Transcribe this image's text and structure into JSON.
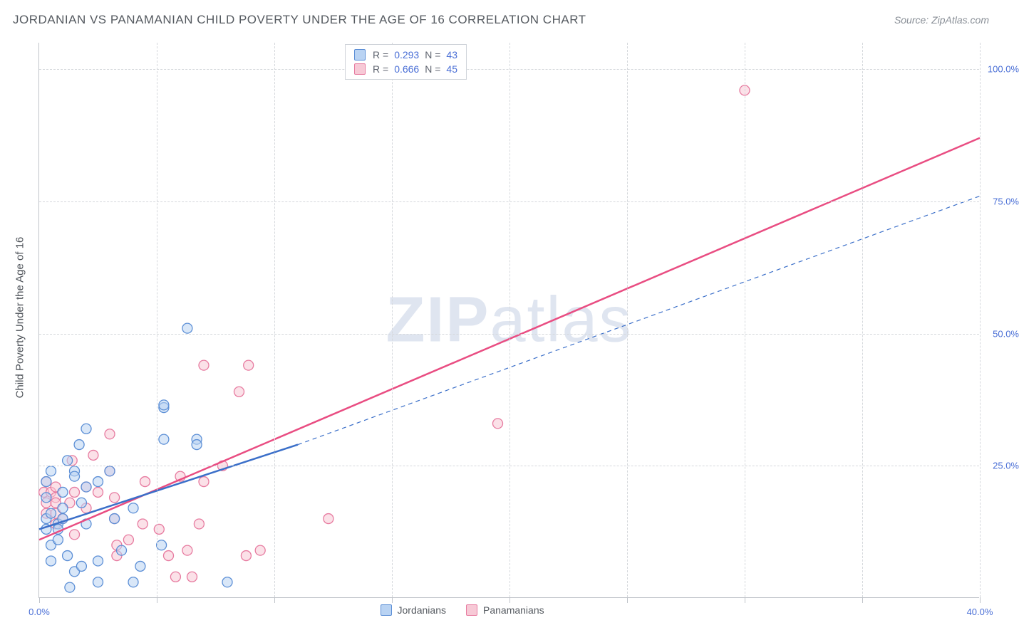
{
  "header": {
    "title": "JORDANIAN VS PANAMANIAN CHILD POVERTY UNDER THE AGE OF 16 CORRELATION CHART",
    "source": "Source: ZipAtlas.com"
  },
  "axis": {
    "y_title": "Child Poverty Under the Age of 16",
    "xlim": [
      0,
      40
    ],
    "ylim": [
      0,
      105
    ],
    "x_ticks": [
      0,
      5,
      10,
      15,
      20,
      25,
      30,
      35,
      40
    ],
    "x_tick_labels": {
      "0": "0.0%",
      "40": "40.0%"
    },
    "y_gridlines": [
      25,
      50,
      75,
      100
    ],
    "y_tick_labels": {
      "25": "25.0%",
      "50": "50.0%",
      "75": "75.0%",
      "100": "100.0%"
    }
  },
  "colors": {
    "series_a_fill": "#b9d3f3",
    "series_a_stroke": "#5c8fd6",
    "series_b_fill": "#f7c9d6",
    "series_b_stroke": "#e77ba0",
    "line_a": "#3b6fc9",
    "line_b": "#e94d82",
    "grid": "#d5d8dc",
    "axis_text": "#4a6fd6",
    "background": "#ffffff"
  },
  "legend_top": {
    "rows": [
      {
        "swatch": "a",
        "r_label": "R =",
        "r_val": "0.293",
        "n_label": "N =",
        "n_val": "43"
      },
      {
        "swatch": "b",
        "r_label": "R =",
        "r_val": "0.666",
        "n_label": "N =",
        "n_val": "45"
      }
    ]
  },
  "legend_bottom": {
    "items": [
      {
        "swatch": "a",
        "label": "Jordanians"
      },
      {
        "swatch": "b",
        "label": "Panamanians"
      }
    ]
  },
  "watermark": {
    "text_a": "ZIP",
    "text_b": "atlas"
  },
  "trend_lines": {
    "a_solid": {
      "x1": 0,
      "y1": 13,
      "x2": 11,
      "y2": 29
    },
    "a_dashed": {
      "x1": 11,
      "y1": 29,
      "x2": 40,
      "y2": 76
    },
    "b_solid": {
      "x1": 0,
      "y1": 11,
      "x2": 40,
      "y2": 87
    }
  },
  "points": {
    "a": [
      {
        "x": 0.3,
        "y": 22
      },
      {
        "x": 0.3,
        "y": 19
      },
      {
        "x": 0.3,
        "y": 15
      },
      {
        "x": 0.3,
        "y": 13
      },
      {
        "x": 0.5,
        "y": 24
      },
      {
        "x": 0.5,
        "y": 16
      },
      {
        "x": 0.5,
        "y": 10
      },
      {
        "x": 0.5,
        "y": 7
      },
      {
        "x": 0.8,
        "y": 14
      },
      {
        "x": 0.8,
        "y": 13
      },
      {
        "x": 0.8,
        "y": 11
      },
      {
        "x": 1.0,
        "y": 20
      },
      {
        "x": 1.0,
        "y": 17
      },
      {
        "x": 1.0,
        "y": 15
      },
      {
        "x": 1.2,
        "y": 26
      },
      {
        "x": 1.2,
        "y": 8
      },
      {
        "x": 1.3,
        "y": 2
      },
      {
        "x": 1.5,
        "y": 24
      },
      {
        "x": 1.5,
        "y": 23
      },
      {
        "x": 1.7,
        "y": 29
      },
      {
        "x": 1.5,
        "y": 5
      },
      {
        "x": 1.8,
        "y": 18
      },
      {
        "x": 1.8,
        "y": 6
      },
      {
        "x": 2.0,
        "y": 32
      },
      {
        "x": 2.0,
        "y": 21
      },
      {
        "x": 2.0,
        "y": 14
      },
      {
        "x": 2.5,
        "y": 22
      },
      {
        "x": 2.5,
        "y": 7
      },
      {
        "x": 2.5,
        "y": 3
      },
      {
        "x": 3.0,
        "y": 24
      },
      {
        "x": 3.2,
        "y": 15
      },
      {
        "x": 3.5,
        "y": 9
      },
      {
        "x": 4.0,
        "y": 17
      },
      {
        "x": 4.3,
        "y": 6
      },
      {
        "x": 4.0,
        "y": 3
      },
      {
        "x": 5.3,
        "y": 36
      },
      {
        "x": 5.3,
        "y": 36.5
      },
      {
        "x": 5.3,
        "y": 30
      },
      {
        "x": 5.2,
        "y": 10
      },
      {
        "x": 6.3,
        "y": 51
      },
      {
        "x": 6.7,
        "y": 30
      },
      {
        "x": 6.7,
        "y": 29
      },
      {
        "x": 8.0,
        "y": 3
      }
    ],
    "b": [
      {
        "x": 0.2,
        "y": 20
      },
      {
        "x": 0.3,
        "y": 22
      },
      {
        "x": 0.3,
        "y": 18
      },
      {
        "x": 0.3,
        "y": 16
      },
      {
        "x": 0.5,
        "y": 20
      },
      {
        "x": 0.7,
        "y": 21
      },
      {
        "x": 0.7,
        "y": 19
      },
      {
        "x": 0.7,
        "y": 18
      },
      {
        "x": 0.7,
        "y": 16
      },
      {
        "x": 0.7,
        "y": 14
      },
      {
        "x": 1.0,
        "y": 15
      },
      {
        "x": 1.3,
        "y": 18
      },
      {
        "x": 1.4,
        "y": 26
      },
      {
        "x": 1.5,
        "y": 20
      },
      {
        "x": 1.5,
        "y": 12
      },
      {
        "x": 2.0,
        "y": 21
      },
      {
        "x": 2.0,
        "y": 17
      },
      {
        "x": 2.3,
        "y": 27
      },
      {
        "x": 2.5,
        "y": 20
      },
      {
        "x": 3.0,
        "y": 31
      },
      {
        "x": 3.0,
        "y": 24
      },
      {
        "x": 3.2,
        "y": 19
      },
      {
        "x": 3.2,
        "y": 15
      },
      {
        "x": 3.3,
        "y": 8
      },
      {
        "x": 3.3,
        "y": 10
      },
      {
        "x": 3.8,
        "y": 11
      },
      {
        "x": 4.4,
        "y": 14
      },
      {
        "x": 4.5,
        "y": 22
      },
      {
        "x": 5.1,
        "y": 13
      },
      {
        "x": 5.5,
        "y": 8
      },
      {
        "x": 5.8,
        "y": 4
      },
      {
        "x": 6.0,
        "y": 23
      },
      {
        "x": 6.3,
        "y": 9
      },
      {
        "x": 6.5,
        "y": 4
      },
      {
        "x": 6.8,
        "y": 14
      },
      {
        "x": 7.0,
        "y": 44
      },
      {
        "x": 7.0,
        "y": 22
      },
      {
        "x": 7.8,
        "y": 25
      },
      {
        "x": 8.5,
        "y": 39
      },
      {
        "x": 8.8,
        "y": 8
      },
      {
        "x": 8.9,
        "y": 44
      },
      {
        "x": 9.4,
        "y": 9
      },
      {
        "x": 12.3,
        "y": 15
      },
      {
        "x": 19.5,
        "y": 33
      },
      {
        "x": 30.0,
        "y": 96
      }
    ]
  },
  "style": {
    "marker_radius": 7,
    "marker_fill_opacity": 0.55,
    "line_width_solid": 2.5,
    "line_width_dashed": 1.2,
    "dash_pattern": "6,5"
  }
}
